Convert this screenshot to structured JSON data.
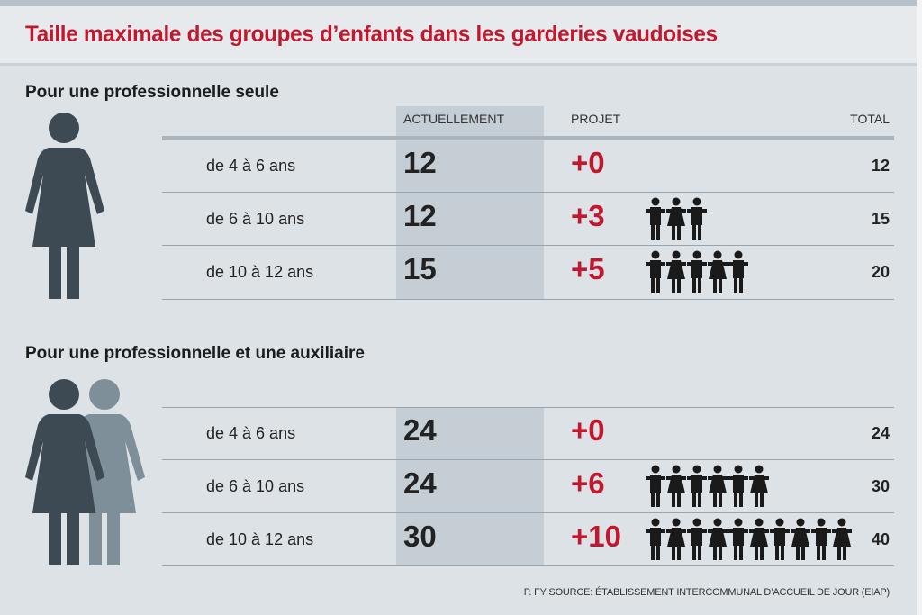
{
  "title": "Taille maximale des groupes d’enfants dans les garderies vaudoises",
  "columns": {
    "current": "ACTUELLEMENT",
    "project": "PROJET",
    "total": "TOTAL"
  },
  "colors": {
    "accent": "#c0182f",
    "figure_dark": "#3d4a53",
    "figure_light": "#7f8f99",
    "child": "#1a1a1a"
  },
  "source": "P. FY SOURCE: ÉTABLISSEMENT INTERCOMMUNAL D’ACCUEIL DE JOUR (EIAP)",
  "chart_data": {
    "type": "table",
    "sections": [
      {
        "title": "Pour une professionnelle seule",
        "icon": "woman-icon",
        "rows": [
          {
            "age": "de 4 à 6 ans",
            "current": "12",
            "project": "+0",
            "added": 0,
            "total": "12"
          },
          {
            "age": "de 6 à 10 ans",
            "current": "12",
            "project": "+3",
            "added": 3,
            "total": "15"
          },
          {
            "age": "de 10 à 12 ans",
            "current": "15",
            "project": "+5",
            "added": 5,
            "total": "20"
          }
        ]
      },
      {
        "title": "Pour une professionnelle et une auxiliaire",
        "icon": "two-women-icon",
        "rows": [
          {
            "age": "de 4 à 6 ans",
            "current": "24",
            "project": "+0",
            "added": 0,
            "total": "24"
          },
          {
            "age": "de 6 à 10 ans",
            "current": "24",
            "project": "+6",
            "added": 6,
            "total": "30"
          },
          {
            "age": "de 10 à 12 ans",
            "current": "30",
            "project": "+10",
            "added": 10,
            "total": "40"
          }
        ]
      }
    ]
  }
}
